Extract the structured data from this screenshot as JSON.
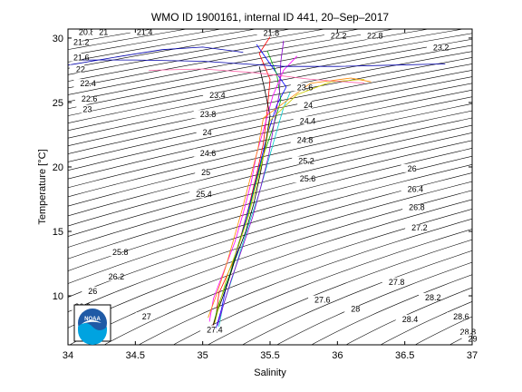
{
  "chart_data": {
    "type": "line",
    "title": "WMO ID 1900161, internal ID 441, 20–Sep–2017",
    "xlabel": "Salinity",
    "ylabel": "Temperature [°C]",
    "xlim": [
      34,
      37
    ],
    "ylim": [
      6.2,
      30.7
    ],
    "x_ticks": [
      "34",
      "34.5",
      "35",
      "35.5",
      "36",
      "36.5",
      "37"
    ],
    "y_ticks": [
      "10",
      "15",
      "20",
      "25",
      "30"
    ],
    "grid": false,
    "legend": "none",
    "density_contours": {
      "color": "#000000",
      "labels": [
        {
          "text": "20.8",
          "s": 34.08,
          "t": 30.4
        },
        {
          "text": "21",
          "s": 34.23,
          "t": 30.4
        },
        {
          "text": "21.2",
          "s": 34.04,
          "t": 29.6
        },
        {
          "text": "21.4",
          "s": 34.51,
          "t": 30.4
        },
        {
          "text": "21.6",
          "s": 34.04,
          "t": 28.4
        },
        {
          "text": "21.8",
          "s": 35.45,
          "t": 30.3
        },
        {
          "text": "22",
          "s": 34.06,
          "t": 27.5
        },
        {
          "text": "22.2",
          "s": 35.95,
          "t": 30.1
        },
        {
          "text": "22.4",
          "s": 34.09,
          "t": 26.4
        },
        {
          "text": "22.6",
          "s": 34.1,
          "t": 25.2
        },
        {
          "text": "22.8",
          "s": 36.22,
          "t": 30.1
        },
        {
          "text": "23",
          "s": 34.11,
          "t": 24.4
        },
        {
          "text": "23.2",
          "s": 36.71,
          "t": 29.2
        },
        {
          "text": "23.4",
          "s": 35.05,
          "t": 25.5
        },
        {
          "text": "23.6",
          "s": 35.7,
          "t": 26.1
        },
        {
          "text": "23.8",
          "s": 34.98,
          "t": 24.0
        },
        {
          "text": "24",
          "s": 35.75,
          "t": 24.7
        },
        {
          "text": "24",
          "s": 35.0,
          "t": 22.6
        },
        {
          "text": "24.4",
          "s": 35.72,
          "t": 23.5
        },
        {
          "text": "24.8",
          "s": 35.7,
          "t": 22.0
        },
        {
          "text": "24.6",
          "s": 34.98,
          "t": 21.0
        },
        {
          "text": "25.2",
          "s": 35.71,
          "t": 20.4
        },
        {
          "text": "25",
          "s": 34.99,
          "t": 19.5
        },
        {
          "text": "25.6",
          "s": 35.72,
          "t": 19.0
        },
        {
          "text": "25.4",
          "s": 34.95,
          "t": 17.8
        },
        {
          "text": "26",
          "s": 36.52,
          "t": 19.8
        },
        {
          "text": "26.4",
          "s": 36.52,
          "t": 18.2
        },
        {
          "text": "26.8",
          "s": 36.53,
          "t": 16.8
        },
        {
          "text": "27.2",
          "s": 36.55,
          "t": 15.2
        },
        {
          "text": "25.8",
          "s": 34.33,
          "t": 13.3
        },
        {
          "text": "26.2",
          "s": 34.3,
          "t": 11.4
        },
        {
          "text": "26.6",
          "s": 34.05,
          "t": 9.1
        },
        {
          "text": "26",
          "s": 34.15,
          "t": 10.3
        },
        {
          "text": "27",
          "s": 34.55,
          "t": 8.3
        },
        {
          "text": "27.6",
          "s": 35.83,
          "t": 9.6
        },
        {
          "text": "27.8",
          "s": 36.38,
          "t": 11.0
        },
        {
          "text": "28",
          "s": 36.1,
          "t": 8.9
        },
        {
          "text": "28.2",
          "s": 36.65,
          "t": 9.8
        },
        {
          "text": "28.4",
          "s": 36.48,
          "t": 8.1
        },
        {
          "text": "28.6",
          "s": 36.86,
          "t": 8.3
        },
        {
          "text": "28.8",
          "s": 36.91,
          "t": 7.1
        },
        {
          "text": "29",
          "s": 36.97,
          "t": 6.6
        },
        {
          "text": "27.4",
          "s": 35.03,
          "t": 7.3
        }
      ]
    },
    "series": [
      {
        "color": "#ff0000",
        "points": [
          [
            35.06,
            7.2
          ],
          [
            35.1,
            8.5
          ],
          [
            35.12,
            10.2
          ],
          [
            35.22,
            12.5
          ],
          [
            35.28,
            14.5
          ],
          [
            35.34,
            16.8
          ],
          [
            35.4,
            19.4
          ],
          [
            35.45,
            21.8
          ],
          [
            35.48,
            24.5
          ],
          [
            35.5,
            26.8
          ],
          [
            35.42,
            28.8
          ],
          [
            35.5,
            30.1
          ]
        ]
      },
      {
        "color": "#0000ff",
        "points": [
          [
            35.1,
            7.5
          ],
          [
            35.14,
            9.0
          ],
          [
            35.18,
            11.0
          ],
          [
            35.25,
            13.2
          ],
          [
            35.3,
            15.2
          ],
          [
            35.36,
            17.5
          ],
          [
            35.42,
            20.0
          ],
          [
            35.48,
            22.5
          ],
          [
            35.55,
            24.8
          ],
          [
            35.62,
            26.2
          ],
          [
            35.5,
            28.0
          ],
          [
            35.4,
            29.5
          ]
        ]
      },
      {
        "color": "#00aa00",
        "points": [
          [
            35.08,
            7.8
          ],
          [
            35.12,
            9.4
          ],
          [
            35.2,
            11.6
          ],
          [
            35.26,
            13.8
          ],
          [
            35.33,
            16.0
          ],
          [
            35.38,
            18.2
          ],
          [
            35.44,
            20.6
          ],
          [
            35.52,
            23.0
          ],
          [
            35.58,
            25.2
          ],
          [
            35.55,
            27.2
          ],
          [
            35.48,
            29.0
          ]
        ]
      },
      {
        "color": "#ff00ff",
        "points": [
          [
            35.05,
            8.0
          ],
          [
            35.08,
            9.8
          ],
          [
            35.16,
            12.0
          ],
          [
            35.24,
            14.2
          ],
          [
            35.3,
            16.4
          ],
          [
            35.36,
            18.8
          ],
          [
            35.4,
            21.0
          ],
          [
            35.46,
            23.2
          ],
          [
            35.52,
            25.5
          ],
          [
            35.6,
            27.5
          ],
          [
            35.7,
            28.6
          ]
        ]
      },
      {
        "color": "#00cccc",
        "points": [
          [
            35.12,
            7.6
          ],
          [
            35.15,
            9.2
          ],
          [
            35.22,
            11.4
          ],
          [
            35.28,
            13.5
          ],
          [
            35.35,
            15.8
          ],
          [
            35.42,
            18.0
          ],
          [
            35.48,
            20.2
          ],
          [
            35.55,
            22.8
          ],
          [
            35.6,
            24.6
          ],
          [
            35.65,
            25.8
          ]
        ]
      },
      {
        "color": "#000000",
        "points": [
          [
            35.07,
            7.4
          ],
          [
            35.11,
            8.8
          ],
          [
            35.18,
            10.8
          ],
          [
            35.24,
            12.8
          ],
          [
            35.32,
            15.0
          ],
          [
            35.38,
            17.2
          ],
          [
            35.43,
            19.6
          ],
          [
            35.47,
            22.0
          ],
          [
            35.5,
            24.0
          ],
          [
            35.46,
            26.0
          ],
          [
            35.42,
            27.8
          ]
        ]
      },
      {
        "color": "#cccc00",
        "points": [
          [
            35.09,
            7.9
          ],
          [
            35.13,
            9.6
          ],
          [
            35.19,
            11.8
          ],
          [
            35.27,
            14.0
          ],
          [
            35.34,
            16.2
          ],
          [
            35.4,
            18.6
          ],
          [
            35.46,
            21.2
          ],
          [
            35.5,
            23.6
          ],
          [
            35.7,
            25.6
          ],
          [
            35.95,
            26.6
          ],
          [
            36.2,
            26.8
          ]
        ]
      },
      {
        "color": "#ff8800",
        "points": [
          [
            35.04,
            8.3
          ],
          [
            35.1,
            10.0
          ],
          [
            35.17,
            12.2
          ],
          [
            35.23,
            14.4
          ],
          [
            35.29,
            16.6
          ],
          [
            35.35,
            19.0
          ],
          [
            35.41,
            21.4
          ],
          [
            35.45,
            23.8
          ],
          [
            35.8,
            26.5
          ],
          [
            36.1,
            26.9
          ],
          [
            36.25,
            26.6
          ]
        ]
      },
      {
        "color": "#8800cc",
        "points": [
          [
            35.11,
            7.7
          ],
          [
            35.16,
            9.5
          ],
          [
            35.21,
            11.2
          ],
          [
            35.29,
            13.6
          ],
          [
            35.37,
            16.1
          ],
          [
            35.43,
            18.4
          ],
          [
            35.49,
            20.9
          ],
          [
            35.53,
            23.4
          ],
          [
            35.57,
            25.8
          ],
          [
            35.58,
            28.2
          ],
          [
            35.6,
            29.8
          ]
        ]
      },
      {
        "color": "#0000aa",
        "points": [
          [
            34.0,
            28.3
          ],
          [
            34.5,
            28.3
          ],
          [
            35.0,
            28.2
          ],
          [
            35.3,
            28.0
          ],
          [
            35.6,
            27.8
          ],
          [
            36.0,
            27.8
          ],
          [
            36.4,
            27.9
          ],
          [
            36.8,
            28.0
          ]
        ]
      },
      {
        "color": "#0000aa",
        "points": [
          [
            34.0,
            27.9
          ],
          [
            34.4,
            28.6
          ],
          [
            34.7,
            29.1
          ],
          [
            35.0,
            29.3
          ],
          [
            35.3,
            28.9
          ]
        ]
      },
      {
        "color": "#ff66aa",
        "points": [
          [
            34.6,
            27.5
          ],
          [
            35.0,
            27.6
          ],
          [
            35.4,
            27.3
          ],
          [
            35.8,
            26.8
          ],
          [
            36.2,
            26.5
          ]
        ]
      }
    ]
  },
  "logo": {
    "text": "NOAA"
  }
}
